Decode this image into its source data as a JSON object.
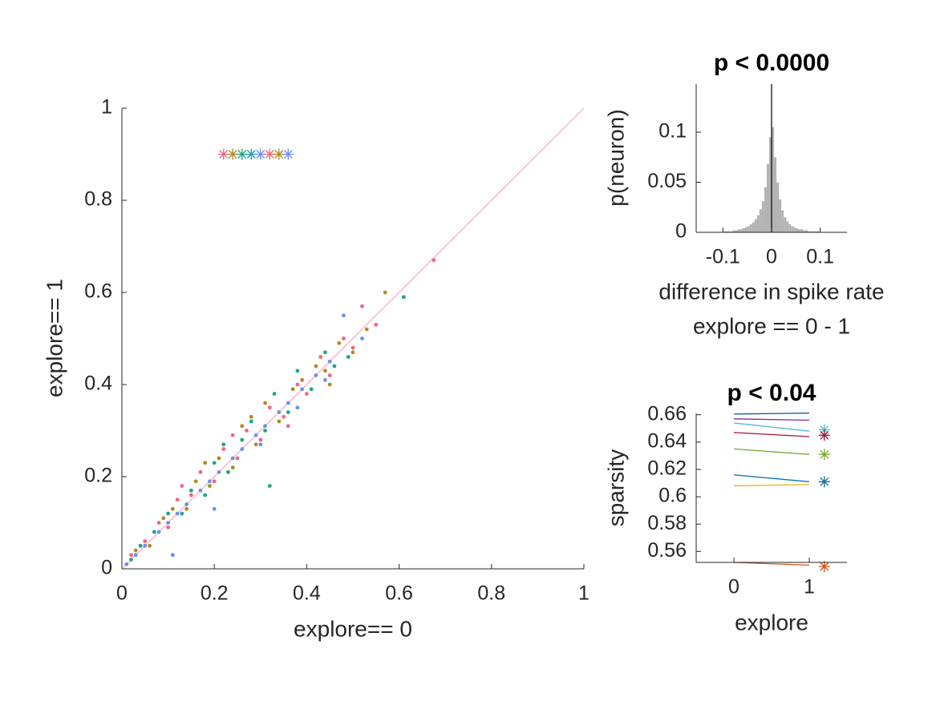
{
  "chart_data": [
    {
      "type": "scatter",
      "xlabel": "explore== 0",
      "ylabel": "explore== 1",
      "xlim": [
        0,
        1
      ],
      "ylim": [
        0,
        1
      ],
      "xticks": [
        0,
        0.2,
        0.4,
        0.6,
        0.8,
        1
      ],
      "yticks": [
        0,
        0.2,
        0.4,
        0.6,
        0.8,
        1
      ],
      "identity_line": true,
      "identity_color": "#f7a8b8",
      "series": [
        {
          "color": "#f0677a",
          "x": [
            0.02,
            0.05,
            0.08,
            0.1,
            0.12,
            0.15,
            0.17,
            0.2,
            0.22,
            0.25,
            0.27,
            0.3,
            0.32,
            0.35,
            0.38,
            0.4,
            0.43,
            0.45,
            0.48,
            0.5,
            0.52,
            0.55,
            0.675,
            0.13,
            0.24,
            0.36
          ],
          "values": [
            0.03,
            0.06,
            0.1,
            0.09,
            0.15,
            0.16,
            0.21,
            0.19,
            0.26,
            0.24,
            0.3,
            0.28,
            0.35,
            0.33,
            0.4,
            0.38,
            0.46,
            0.42,
            0.5,
            0.48,
            0.57,
            0.53,
            0.67,
            0.18,
            0.29,
            0.31
          ]
        },
        {
          "color": "#b5891f",
          "x": [
            0.03,
            0.06,
            0.09,
            0.11,
            0.14,
            0.16,
            0.19,
            0.21,
            0.24,
            0.26,
            0.29,
            0.31,
            0.34,
            0.37,
            0.39,
            0.42,
            0.44,
            0.47,
            0.5,
            0.53,
            0.57,
            0.45,
            0.18,
            0.28
          ],
          "values": [
            0.04,
            0.05,
            0.11,
            0.13,
            0.13,
            0.19,
            0.18,
            0.24,
            0.22,
            0.31,
            0.27,
            0.36,
            0.32,
            0.39,
            0.41,
            0.44,
            0.43,
            0.49,
            0.47,
            0.52,
            0.6,
            0.4,
            0.23,
            0.33
          ]
        },
        {
          "color": "#1ba68a",
          "x": [
            0.02,
            0.04,
            0.07,
            0.1,
            0.13,
            0.15,
            0.18,
            0.2,
            0.23,
            0.26,
            0.28,
            0.31,
            0.33,
            0.36,
            0.38,
            0.41,
            0.44,
            0.46,
            0.49,
            0.61,
            0.32,
            0.22
          ],
          "values": [
            0.02,
            0.05,
            0.08,
            0.12,
            0.12,
            0.17,
            0.16,
            0.23,
            0.21,
            0.28,
            0.32,
            0.3,
            0.38,
            0.34,
            0.43,
            0.39,
            0.47,
            0.44,
            0.46,
            0.59,
            0.18,
            0.27
          ]
        },
        {
          "color": "#6d8ff0",
          "x": [
            0.01,
            0.03,
            0.05,
            0.08,
            0.1,
            0.12,
            0.14,
            0.17,
            0.19,
            0.21,
            0.24,
            0.26,
            0.29,
            0.31,
            0.34,
            0.36,
            0.39,
            0.42,
            0.45,
            0.48,
            0.52,
            0.11,
            0.2,
            0.3,
            0.38,
            0.44
          ],
          "values": [
            0.01,
            0.03,
            0.05,
            0.08,
            0.1,
            0.12,
            0.14,
            0.17,
            0.19,
            0.21,
            0.24,
            0.26,
            0.29,
            0.31,
            0.34,
            0.36,
            0.39,
            0.42,
            0.45,
            0.55,
            0.5,
            0.03,
            0.13,
            0.27,
            0.35,
            0.41
          ]
        },
        {
          "marker": "star",
          "x": [
            0.22,
            0.24,
            0.26,
            0.28,
            0.3,
            0.32,
            0.34,
            0.36
          ],
          "values": [
            0.9,
            0.9,
            0.9,
            0.9,
            0.9,
            0.9,
            0.9,
            0.9
          ],
          "colors": [
            "#f0677a",
            "#b5891f",
            "#1ba68a",
            "#1a9fb0",
            "#6d8ff0",
            "#f0677a",
            "#b5891f",
            "#6d8ff0"
          ]
        }
      ]
    },
    {
      "type": "histogram",
      "title": "p < 0.0000",
      "ylabel": "p(neuron)",
      "xlabel": [
        "difference in spike rate",
        "explore == 0 - 1"
      ],
      "xlim": [
        -0.155,
        0.155
      ],
      "ylim": [
        0,
        0.148
      ],
      "xticks": [
        -0.1,
        0,
        0.1
      ],
      "yticks": [
        0,
        0.05,
        0.1
      ],
      "color": "#b3b3b3",
      "vline": 0,
      "bins": [
        -0.1,
        -0.095,
        -0.09,
        -0.085,
        -0.08,
        -0.075,
        -0.07,
        -0.065,
        -0.06,
        -0.055,
        -0.05,
        -0.045,
        -0.04,
        -0.035,
        -0.03,
        -0.025,
        -0.02,
        -0.015,
        -0.01,
        -0.005,
        0,
        0.005,
        0.01,
        0.015,
        0.02,
        0.025,
        0.03,
        0.035,
        0.04,
        0.045,
        0.05,
        0.055,
        0.06,
        0.065,
        0.07,
        0.075,
        0.08,
        0.085,
        0.09,
        0.095,
        0.1
      ],
      "values": [
        0.001,
        0.001,
        0.001,
        0.001,
        0.002,
        0.002,
        0.003,
        0.003,
        0.004,
        0.005,
        0.006,
        0.008,
        0.01,
        0.013,
        0.017,
        0.023,
        0.031,
        0.045,
        0.068,
        0.095,
        0.105,
        0.075,
        0.05,
        0.033,
        0.022,
        0.015,
        0.011,
        0.008,
        0.006,
        0.005,
        0.004,
        0.003,
        0.003,
        0.002,
        0.002,
        0.001,
        0.001,
        0.001,
        0.001,
        0.001
      ]
    },
    {
      "type": "line",
      "title": "p < 0.04",
      "ylabel": "sparsity",
      "xlabel": "explore",
      "xlim": [
        -0.5,
        1.5
      ],
      "ylim": [
        0.552,
        0.661
      ],
      "xticks": [
        0,
        1
      ],
      "yticks": [
        0.56,
        0.58,
        0.6,
        0.62,
        0.64,
        0.66
      ],
      "series": [
        {
          "color": "#0b4f9c",
          "x": [
            0,
            1
          ],
          "values": [
            0.6605,
            0.6612
          ]
        },
        {
          "color": "#7b2d8a",
          "x": [
            0,
            1
          ],
          "values": [
            0.657,
            0.656
          ]
        },
        {
          "color": "#4dbfd9",
          "x": [
            0,
            1
          ],
          "values": [
            0.654,
            0.648
          ]
        },
        {
          "color": "#a2142f",
          "x": [
            0,
            1
          ],
          "values": [
            0.647,
            0.644
          ]
        },
        {
          "color": "#77ac30",
          "x": [
            0,
            1
          ],
          "values": [
            0.635,
            0.631
          ]
        },
        {
          "color": "#0072bd",
          "x": [
            0,
            1
          ],
          "values": [
            0.616,
            0.611
          ]
        },
        {
          "color": "#edb120",
          "x": [
            0,
            1
          ],
          "values": [
            0.608,
            0.609
          ]
        },
        {
          "color": "#d95319",
          "x": [
            0,
            1
          ],
          "values": [
            0.552,
            0.55
          ]
        },
        {
          "marker": "star",
          "x": [
            1.2,
            1.2,
            1.2,
            1.2,
            1.2
          ],
          "values": [
            0.649,
            0.645,
            0.631,
            0.611,
            0.549
          ],
          "colors": [
            "#4dbfd9",
            "#a2142f",
            "#77ac30",
            "#0b6e8f",
            "#d95319"
          ]
        }
      ]
    }
  ]
}
